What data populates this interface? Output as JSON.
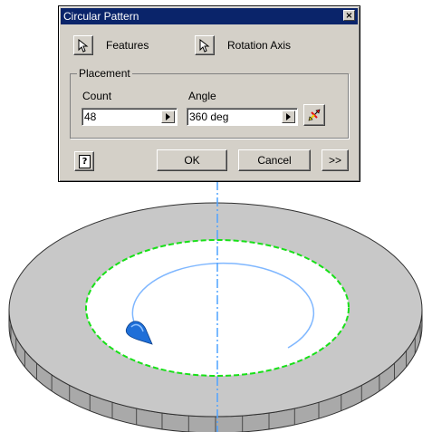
{
  "dialog": {
    "title": "Circular Pattern",
    "close_icon": "close-icon",
    "features_label": "Features",
    "rotation_axis_label": "Rotation Axis",
    "placement": {
      "group_label": "Placement",
      "count_label": "Count",
      "count_value": "48",
      "angle_label": "Angle",
      "angle_value": "360 deg",
      "flip_icon": "flip-direction-icon"
    },
    "help_icon": "help-icon",
    "ok_label": "OK",
    "cancel_label": "Cancel",
    "more_label": ">>"
  },
  "viewport": {
    "part": "circular-disc-with-48-segments",
    "colors": {
      "disc_top": "#c8c8c8",
      "disc_side": "#a6a6a6",
      "hole_edge": "#00dd00",
      "axis_line": "#4fa3ff",
      "rotation_arc": "#7fb7ff",
      "arrow": "#1f6fd8"
    },
    "segment_count": 48
  }
}
